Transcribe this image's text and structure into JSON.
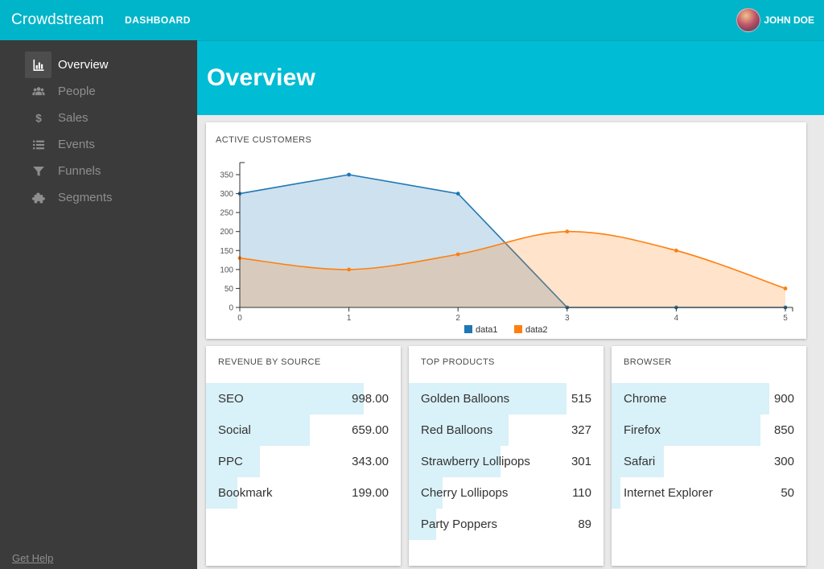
{
  "topbar": {
    "brand": "Crowdstream",
    "nav_dashboard": "DASHBOARD",
    "user_name": "JOHN DOE"
  },
  "sidebar": {
    "items": [
      {
        "label": "Overview",
        "icon": "bar-chart",
        "active": true
      },
      {
        "label": "People",
        "icon": "users",
        "active": false
      },
      {
        "label": "Sales",
        "icon": "dollar",
        "active": false
      },
      {
        "label": "Events",
        "icon": "list",
        "active": false
      },
      {
        "label": "Funnels",
        "icon": "funnel",
        "active": false
      },
      {
        "label": "Segments",
        "icon": "puzzle",
        "active": false
      }
    ],
    "help_link": "Get Help"
  },
  "page": {
    "title": "Overview"
  },
  "colors": {
    "topbar": "#00b5c9",
    "accent": "#00bcd4",
    "sidebar_bg": "#3b3b3b",
    "series_blue": "#1f77b4",
    "series_orange": "#ff7f0e",
    "stat_bar_bg": "#d9f1f8"
  },
  "chart_data": [
    {
      "id": "active-customers",
      "type": "area",
      "title": "ACTIVE CUSTOMERS",
      "x": [
        0,
        1,
        2,
        3,
        4,
        5
      ],
      "yticks": [
        0,
        50,
        100,
        150,
        200,
        250,
        300,
        350
      ],
      "ylim": [
        0,
        385
      ],
      "grid": false,
      "legend_position": "bottom-center",
      "series": [
        {
          "name": "data1",
          "color": "#1f77b4",
          "curve": "linear",
          "values": [
            300,
            350,
            300,
            0,
            0,
            0
          ]
        },
        {
          "name": "data2",
          "color": "#ff7f0e",
          "curve": "spline",
          "values": [
            130,
            100,
            140,
            200,
            150,
            50
          ]
        }
      ]
    },
    {
      "id": "revenue-by-source",
      "type": "bar",
      "orientation": "horizontal",
      "title": "REVENUE BY SOURCE",
      "categories": [
        "SEO",
        "Social",
        "PPC",
        "Bookmark"
      ],
      "values": [
        998,
        659,
        343,
        199
      ],
      "values_display": [
        "998.00",
        "659.00",
        "343.00",
        "199.00"
      ],
      "bar_color": "#d9f1f8"
    },
    {
      "id": "top-products",
      "type": "bar",
      "orientation": "horizontal",
      "title": "TOP PRODUCTS",
      "categories": [
        "Golden Balloons",
        "Red Balloons",
        "Strawberry Lollipops",
        "Cherry Lollipops",
        "Party Poppers"
      ],
      "values": [
        515,
        327,
        301,
        110,
        89
      ],
      "values_display": [
        "515",
        "327",
        "301",
        "110",
        "89"
      ],
      "bar_color": "#d9f1f8"
    },
    {
      "id": "browser",
      "type": "bar",
      "orientation": "horizontal",
      "title": "BROWSER",
      "categories": [
        "Chrome",
        "Firefox",
        "Safari",
        "Internet Explorer"
      ],
      "values": [
        900,
        850,
        300,
        50
      ],
      "values_display": [
        "900",
        "850",
        "300",
        "50"
      ],
      "bar_color": "#d9f1f8"
    }
  ]
}
